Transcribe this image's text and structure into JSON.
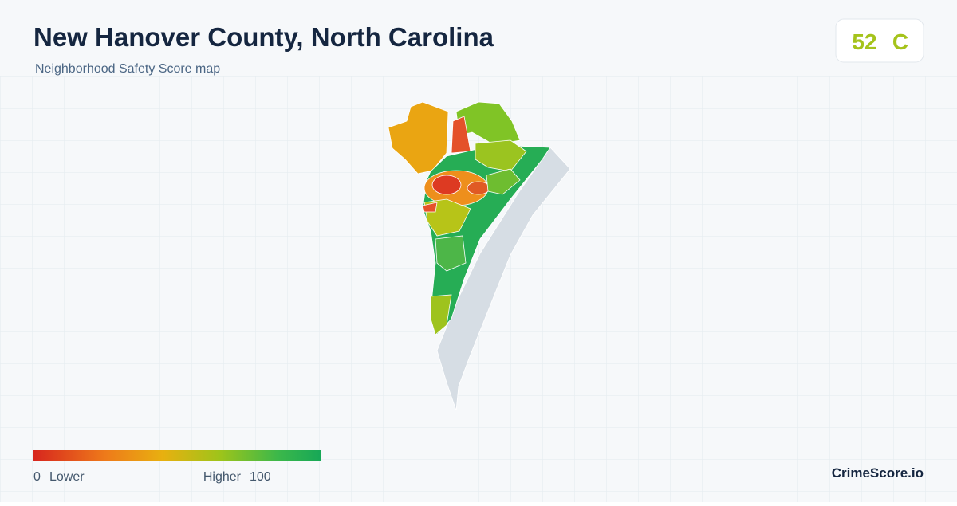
{
  "header": {
    "title": "New Hanover County, North Carolina",
    "subtitle": "Neighborhood Safety Score map"
  },
  "score": {
    "value": "52",
    "grade": "C"
  },
  "legend": {
    "min": "0",
    "min_label": "Lower",
    "max_label": "Higher",
    "max": "100"
  },
  "brand": "CrimeScore.io"
}
